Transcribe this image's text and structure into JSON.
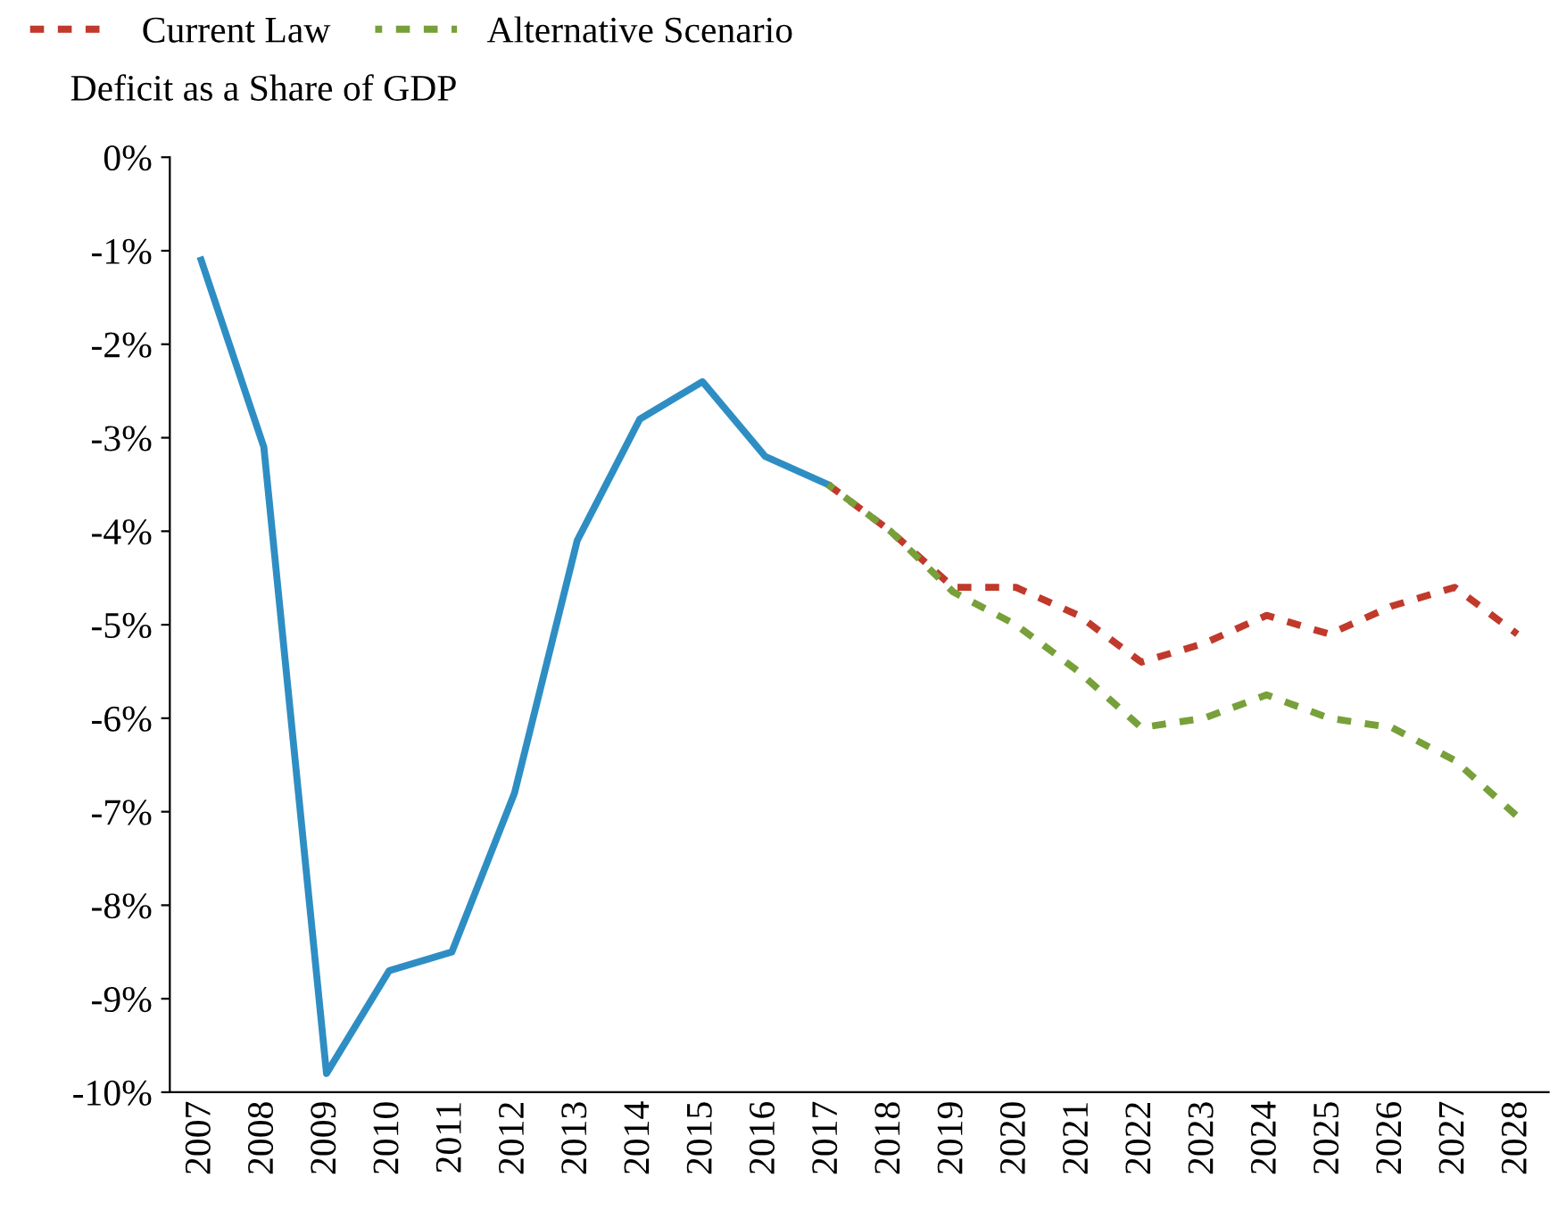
{
  "chart_data": {
    "type": "line",
    "title": "Deficit as a Share of GDP",
    "categories": [
      "2007",
      "2008",
      "2009",
      "2010",
      "2011",
      "2012",
      "2013",
      "2014",
      "2015",
      "2016",
      "2017",
      "2018",
      "2019",
      "2020",
      "2021",
      "2022",
      "2023",
      "2024",
      "2025",
      "2026",
      "2027",
      "2028"
    ],
    "series": [
      {
        "color": "#2e8ec4",
        "line_style": "solid",
        "values": [
          -1.1,
          -3.1,
          -9.8,
          -8.7,
          -8.5,
          -6.8,
          -4.1,
          -2.8,
          -2.4,
          -3.2,
          -3.5,
          null,
          null,
          null,
          null,
          null,
          null,
          null,
          null,
          null,
          null,
          null
        ]
      },
      {
        "name": "Current Law",
        "color": "#c0392b",
        "line_style": "dashed",
        "values": [
          null,
          null,
          null,
          null,
          null,
          null,
          null,
          null,
          null,
          null,
          -3.5,
          -4.0,
          -4.6,
          -4.6,
          -4.9,
          -5.4,
          -5.2,
          -4.9,
          -5.1,
          -4.8,
          -4.6,
          -5.1
        ]
      },
      {
        "name": "Alternative Scenario",
        "color": "#77a03a",
        "line_style": "dashed",
        "values": [
          null,
          null,
          null,
          null,
          null,
          null,
          null,
          null,
          null,
          null,
          -3.5,
          -4.0,
          -4.65,
          -5.0,
          -5.5,
          -6.1,
          -6.0,
          -5.75,
          -6.0,
          -6.1,
          -6.45,
          -7.05
        ]
      }
    ],
    "ylim": [
      -10,
      0
    ],
    "yticks": [
      {
        "value": 0,
        "label": "0%"
      },
      {
        "value": -1,
        "label": "-1%"
      },
      {
        "value": -2,
        "label": "-2%"
      },
      {
        "value": -3,
        "label": "-3%"
      },
      {
        "value": -4,
        "label": "-4%"
      },
      {
        "value": -5,
        "label": "-5%"
      },
      {
        "value": -6,
        "label": "-6%"
      },
      {
        "value": -7,
        "label": "-7%"
      },
      {
        "value": -8,
        "label": "-8%"
      },
      {
        "value": -9,
        "label": "-9%"
      },
      {
        "value": -10,
        "label": "-10%"
      }
    ],
    "grid": false,
    "legend": "top left",
    "marker": "none"
  }
}
